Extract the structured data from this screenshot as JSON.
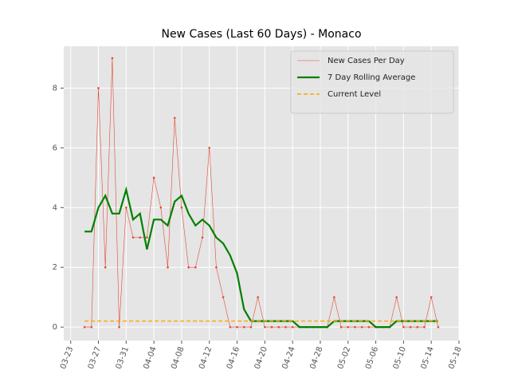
{
  "chart_data": {
    "type": "line",
    "title": "New Cases (Last 60 Days) - Monaco",
    "x": [
      "03-25",
      "03-26",
      "03-27",
      "03-28",
      "03-29",
      "03-30",
      "03-31",
      "04-01",
      "04-02",
      "04-03",
      "04-04",
      "04-05",
      "04-06",
      "04-07",
      "04-08",
      "04-09",
      "04-10",
      "04-11",
      "04-12",
      "04-13",
      "04-14",
      "04-15",
      "04-16",
      "04-17",
      "04-18",
      "04-19",
      "04-20",
      "04-21",
      "04-22",
      "04-23",
      "04-24",
      "04-25",
      "04-26",
      "04-27",
      "04-28",
      "04-29",
      "04-30",
      "05-01",
      "05-02",
      "05-03",
      "05-04",
      "05-05",
      "05-06",
      "05-07",
      "05-08",
      "05-09",
      "05-10",
      "05-11",
      "05-12",
      "05-13",
      "05-14",
      "05-15"
    ],
    "series": [
      {
        "name": "New Cases Per Day",
        "color": "#e24a33",
        "style": "thin-markers",
        "values": [
          0,
          0,
          8,
          2,
          9,
          0,
          4,
          3,
          3,
          3,
          5,
          4,
          2,
          7,
          4,
          2,
          2,
          3,
          6,
          2,
          1,
          0,
          0,
          0,
          0,
          1,
          0,
          0,
          0,
          0,
          0,
          0,
          0,
          0,
          0,
          0,
          1,
          0,
          0,
          0,
          0,
          0,
          0,
          0,
          0,
          1,
          0,
          0,
          0,
          0,
          1,
          0
        ]
      },
      {
        "name": "7 Day Rolling Average",
        "color": "#008000",
        "style": "thick",
        "values": [
          3.2,
          3.2,
          4,
          4.4,
          3.8,
          3.8,
          4.6,
          3.6,
          3.8,
          2.6,
          3.6,
          3.6,
          3.4,
          4.2,
          4.4,
          3.8,
          3.4,
          3.6,
          3.4,
          3.0,
          2.8,
          2.4,
          1.8,
          0.6,
          0.2,
          0.2,
          0.2,
          0.2,
          0.2,
          0.2,
          0.2,
          0,
          0,
          0,
          0,
          0,
          0.2,
          0.2,
          0.2,
          0.2,
          0.2,
          0.2,
          0,
          0,
          0,
          0.2,
          0.2,
          0.2,
          0.2,
          0.2,
          0.2,
          0.2
        ]
      },
      {
        "name": "Current Level",
        "color": "#ffa500",
        "style": "dashed",
        "values": [
          0.2,
          0.2,
          0.2,
          0.2,
          0.2,
          0.2,
          0.2,
          0.2,
          0.2,
          0.2,
          0.2,
          0.2,
          0.2,
          0.2,
          0.2,
          0.2,
          0.2,
          0.2,
          0.2,
          0.2,
          0.2,
          0.2,
          0.2,
          0.2,
          0.2,
          0.2,
          0.2,
          0.2,
          0.2,
          0.2,
          0.2,
          0.2,
          0.2,
          0.2,
          0.2,
          0.2,
          0.2,
          0.2,
          0.2,
          0.2,
          0.2,
          0.2,
          0.2,
          0.2,
          0.2,
          0.2,
          0.2,
          0.2,
          0.2,
          0.2,
          0.2,
          0.2
        ]
      }
    ],
    "xlim": [
      "03-22",
      "05-18"
    ],
    "xticks": [
      "03-23",
      "03-27",
      "03-31",
      "04-04",
      "04-08",
      "04-12",
      "04-16",
      "04-20",
      "04-24",
      "04-28",
      "05-02",
      "05-06",
      "05-10",
      "05-14",
      "05-18"
    ],
    "ylim": [
      -0.45,
      9.4
    ],
    "yticks": [
      0,
      2,
      4,
      6,
      8
    ],
    "grid": true,
    "legend": "upper-right"
  }
}
